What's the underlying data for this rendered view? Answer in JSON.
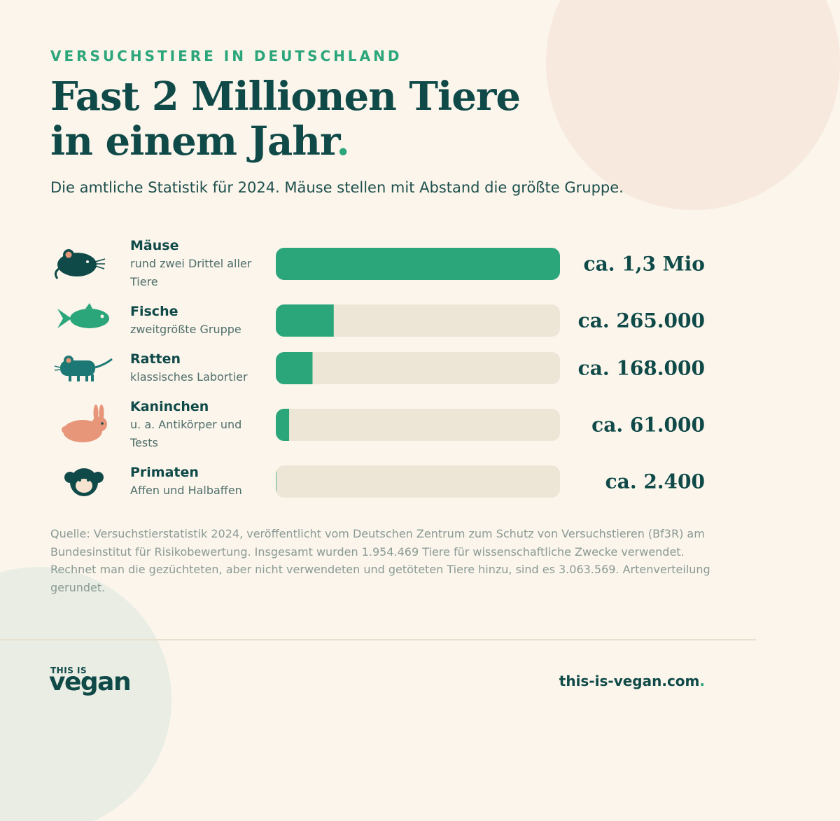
{
  "header": {
    "kicker": "VERSUCHSTIERE IN DEUTSCHLAND",
    "title": [
      "Fast 2 Millionen Tiere",
      "in einem Jahr"
    ],
    "title_dot": "."
  },
  "subtitle": "Die amtliche Statistik für 2024. Mäuse stellen mit Abstand die größte Gruppe.",
  "chart_data": {
    "type": "bar",
    "orientation": "horizontal",
    "categories": [
      "Mäuse",
      "Fische",
      "Ratten",
      "Kaninchen",
      "Primaten"
    ],
    "descriptions": [
      "rund zwei Drittel aller Tiere",
      "zweitgrößte Gruppe",
      "klassisches Labortier",
      "u. a. Antikörper und Tests",
      "Affen und Halbaffen"
    ],
    "values": [
      1300000,
      265000,
      168000,
      61000,
      2400
    ],
    "value_labels": [
      "ca. 1,3 Mio",
      "ca. 265.000",
      "ca. 168.000",
      "ca. 61.000",
      "ca. 2.400"
    ],
    "xlim": [
      0,
      1300000
    ],
    "color": "#2ba57a",
    "track_color": "#ede5d6"
  },
  "source": "Quelle: Versuchstierstatistik 2024, veröffentlicht vom Deutschen Zentrum zum Schutz von Versuchstieren (Bf3R) am Bundesinstitut für Risikobewertung. Insgesamt wurden 1.954.469 Tiere für wissenschaftliche Zwecke verwendet. Rechnet man die gezüchteten, aber nicht verwendeten und getöteten Tiere hinzu, sind es 3.063.569. Artenverteilung gerundet.",
  "footer": {
    "logo_top": "THIS IS",
    "logo_bottom": "vegan",
    "url": "this-is-vegan.com",
    "url_dot": "."
  }
}
